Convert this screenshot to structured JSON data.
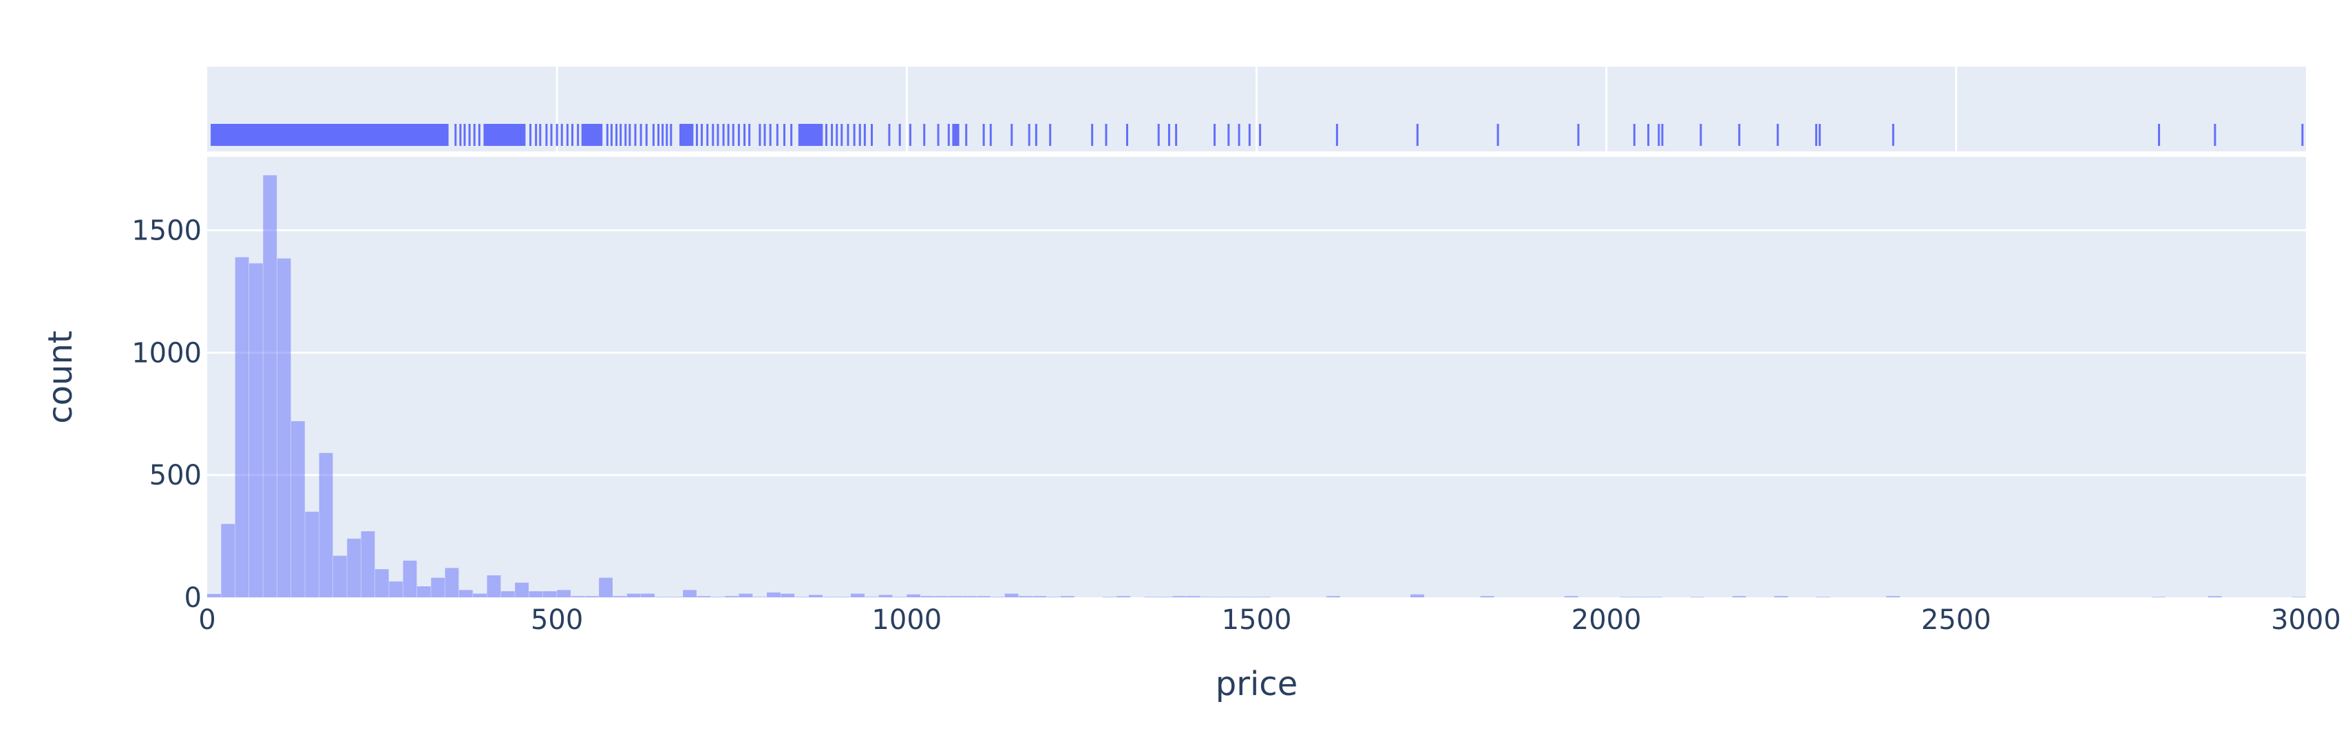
{
  "chart_data": {
    "type": "bar",
    "subtype": "histogram-with-rug",
    "xlabel": "price",
    "ylabel": "count",
    "xlim": [
      0,
      3000
    ],
    "ylim": [
      0,
      1800
    ],
    "x_ticks": [
      0,
      500,
      1000,
      1500,
      2000,
      2500,
      3000
    ],
    "x_tick_labels": [
      "0",
      "500",
      "1000",
      "1500",
      "2000",
      "2500",
      "3000"
    ],
    "y_ticks": [
      0,
      500,
      1000,
      1500
    ],
    "y_tick_labels": [
      "0",
      "500",
      "1000",
      "1500"
    ],
    "grid": true,
    "colors": {
      "plot_bg": "#e5ecf6",
      "grid": "#ffffff",
      "bar": "#636efa",
      "rug": "#636efa",
      "text": "#2a3f5f"
    },
    "bin_width": 20,
    "bins_start": [
      0,
      20,
      40,
      60,
      80,
      100,
      120,
      140,
      160,
      180,
      200,
      220,
      240,
      260,
      280,
      300,
      320,
      340,
      360,
      380,
      400,
      420,
      440,
      460,
      480,
      500,
      520,
      540,
      560,
      580,
      600,
      620,
      640,
      660,
      680,
      700,
      720,
      740,
      760,
      780,
      800,
      820,
      840,
      860,
      880,
      900,
      920,
      940,
      960,
      980,
      1000,
      1020,
      1040,
      1060,
      1080,
      1100,
      1120,
      1140,
      1160,
      1180,
      1200,
      1220,
      1280,
      1300,
      1340,
      1360,
      1380,
      1400,
      1420,
      1440,
      1460,
      1480,
      1500,
      1600,
      1720,
      1820,
      1940,
      2020,
      2040,
      2060,
      2120,
      2180,
      2240,
      2300,
      2400,
      2780,
      2860,
      2980
    ],
    "values": [
      14,
      300,
      1390,
      1365,
      1725,
      1385,
      720,
      350,
      590,
      170,
      240,
      270,
      115,
      65,
      150,
      45,
      80,
      120,
      30,
      15,
      90,
      25,
      60,
      25,
      25,
      30,
      5,
      5,
      80,
      5,
      15,
      15,
      2,
      2,
      30,
      5,
      2,
      5,
      15,
      2,
      20,
      15,
      2,
      10,
      2,
      2,
      15,
      2,
      10,
      2,
      12,
      5,
      5,
      5,
      5,
      5,
      2,
      15,
      5,
      5,
      2,
      5,
      2,
      5,
      2,
      2,
      5,
      5,
      2,
      2,
      2,
      2,
      2,
      5,
      12,
      5,
      5,
      2,
      2,
      2,
      2,
      5,
      5,
      2,
      5,
      2,
      5,
      2
    ],
    "rug": {
      "dense_ranges": [
        [
          5,
          345
        ],
        [
          395,
          455
        ],
        [
          535,
          565
        ],
        [
          675,
          695
        ],
        [
          845,
          880
        ],
        [
          1065,
          1075
        ]
      ],
      "points": [
        355,
        362,
        368,
        375,
        382,
        389,
        405,
        413,
        420,
        428,
        433,
        440,
        447,
        453,
        462,
        470,
        476,
        485,
        492,
        500,
        507,
        515,
        522,
        530,
        572,
        578,
        585,
        591,
        598,
        604,
        612,
        620,
        628,
        638,
        645,
        651,
        657,
        663,
        700,
        707,
        715,
        723,
        730,
        738,
        745,
        752,
        760,
        768,
        775,
        790,
        797,
        805,
        815,
        825,
        835,
        858,
        885,
        893,
        900,
        907,
        916,
        925,
        933,
        940,
        950,
        975,
        990,
        1005,
        1025,
        1045,
        1060,
        1085,
        1110,
        1120,
        1150,
        1175,
        1185,
        1205,
        1265,
        1285,
        1315,
        1360,
        1375,
        1385,
        1440,
        1460,
        1475,
        1490,
        1505,
        1615,
        1730,
        1845,
        1960,
        2040,
        2060,
        2075,
        2080,
        2135,
        2190,
        2245,
        2300,
        2305,
        2410,
        2790,
        2870,
        2995
      ]
    }
  }
}
